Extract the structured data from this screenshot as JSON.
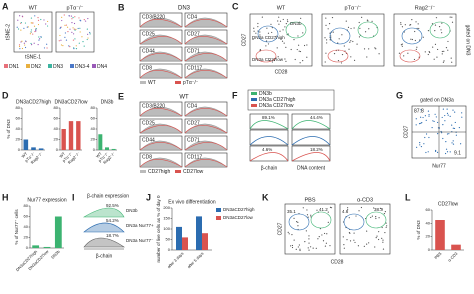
{
  "panels": {
    "A": {
      "label": "A",
      "titles": [
        "WT",
        "pTα⁻/⁻"
      ],
      "y_label": "tSNE-2",
      "x_label": "tSNE-1",
      "legend": [
        "DN1",
        "DN2",
        "DN3",
        "DN3-4",
        "DN4"
      ],
      "colors": [
        "#e8707a",
        "#e8b040",
        "#3cb4a0",
        "#4a78c8",
        "#9a5ab8"
      ]
    },
    "B": {
      "label": "B",
      "title": "DN3",
      "markers": [
        "CD3/B220",
        "CD4",
        "CD25",
        "CD27",
        "CD44",
        "CD71",
        "CD8",
        "CD117"
      ],
      "legend": [
        "WT",
        "pTα⁻/⁻"
      ]
    },
    "C": {
      "label": "C",
      "titles": [
        "WT",
        "pTα⁻/⁻",
        "Rag2⁻/⁻"
      ],
      "side": "gated on DN3",
      "y_label": "CD27",
      "x_label": "CD28",
      "gates": [
        "DN3a CD27high",
        "DN3b",
        "DN3a CD27low"
      ]
    },
    "D": {
      "label": "D"
    },
    "E": {
      "label": "E",
      "title": "WT",
      "markers": [
        "CD3/B220",
        "CD4",
        "CD25",
        "CD27",
        "CD44",
        "CD71",
        "CD8",
        "CD117"
      ],
      "legend": [
        "CD27high",
        "CD27low"
      ]
    },
    "F": {
      "label": "F",
      "legend": [
        "DN3b",
        "DN3a CD27high",
        "DN3a CD27low"
      ],
      "percents": [
        "89.1%",
        "44.4%",
        "4.6%",
        "18.2%"
      ],
      "x_labels": [
        "β-chain",
        "DNA content"
      ]
    },
    "G": {
      "label": "G",
      "title": "gated on DN3a",
      "quadrants": [
        "87.8",
        "9.1"
      ],
      "y_label": "CD27",
      "x_label": "Nur77"
    },
    "H": {
      "label": "H"
    },
    "I": {
      "label": "I",
      "title": "β-chain expression",
      "percents": [
        "92.5%",
        "54.2%",
        "18.7%"
      ],
      "rows": [
        "DN3b",
        "DN3a Nur77+",
        "DN3a Nur77⁻"
      ],
      "x_label": "β-chain"
    },
    "J": {
      "label": "J"
    },
    "K": {
      "label": "K",
      "titles": [
        "PBS",
        "α-CD3"
      ],
      "gates": [
        "35.1",
        "41.2",
        "4.6",
        "38.3"
      ],
      "y_label": "CD27",
      "x_label": "CD28"
    },
    "L": {
      "label": "L"
    }
  },
  "chart_data": [
    {
      "type": "bar",
      "title": "DN3aCD27high",
      "y_label": "% of DN3",
      "categories": [
        "WT",
        "pTα⁻/⁻",
        "Rag2⁻/⁻"
      ],
      "values": [
        20,
        5,
        3
      ],
      "color": "#2b6cb0",
      "ylim": [
        0,
        80
      ],
      "yticks": [
        0,
        20,
        40,
        60,
        80
      ]
    },
    {
      "type": "bar",
      "title": "DN3aCD27low",
      "categories": [
        "WT",
        "pTα⁻/⁻",
        "Rag2⁻/⁻"
      ],
      "values": [
        40,
        55,
        55
      ],
      "color": "#d9534f",
      "ylim": [
        0,
        80
      ],
      "yticks": [
        0,
        20,
        40,
        60,
        80
      ]
    },
    {
      "type": "bar",
      "title": "DN3b",
      "categories": [
        "WT",
        "pTα⁻/⁻",
        "Rag2⁻/⁻"
      ],
      "values": [
        30,
        5,
        2
      ],
      "color": "#3cb371",
      "ylim": [
        0,
        80
      ],
      "yticks": [
        0,
        20,
        40,
        60,
        80
      ]
    },
    {
      "type": "bar",
      "title": "Nur77 expression",
      "y_label": "% of Nur77⁺ cells",
      "categories": [
        "DN3aCD27high",
        "DN3aCD27low",
        "DN3b"
      ],
      "values": [
        5,
        2,
        60
      ],
      "color": "#3cb371",
      "ylim": [
        0,
        80
      ],
      "yticks": [
        0,
        20,
        40,
        60,
        80
      ]
    },
    {
      "type": "bar",
      "title": "Ex vivo differentiation",
      "y_label": "number of live cells as % of day 0",
      "categories": [
        "after 3 days",
        "after 5 days"
      ],
      "series": [
        {
          "name": "DN3aCD27high",
          "color": "#2b6cb0",
          "values": [
            110,
            160
          ]
        },
        {
          "name": "DN3aCD27low",
          "color": "#d9534f",
          "values": [
            60,
            80
          ]
        }
      ],
      "ylim": [
        0,
        200
      ],
      "yticks": [
        0,
        50,
        100,
        150,
        200
      ]
    },
    {
      "type": "bar",
      "title": "CD27low",
      "y_label": "% of DN3",
      "categories": [
        "PBS",
        "α-CD3"
      ],
      "values": [
        45,
        8
      ],
      "color": "#d9534f",
      "ylim": [
        0,
        60
      ],
      "yticks": [
        0,
        20,
        40,
        60
      ]
    }
  ]
}
